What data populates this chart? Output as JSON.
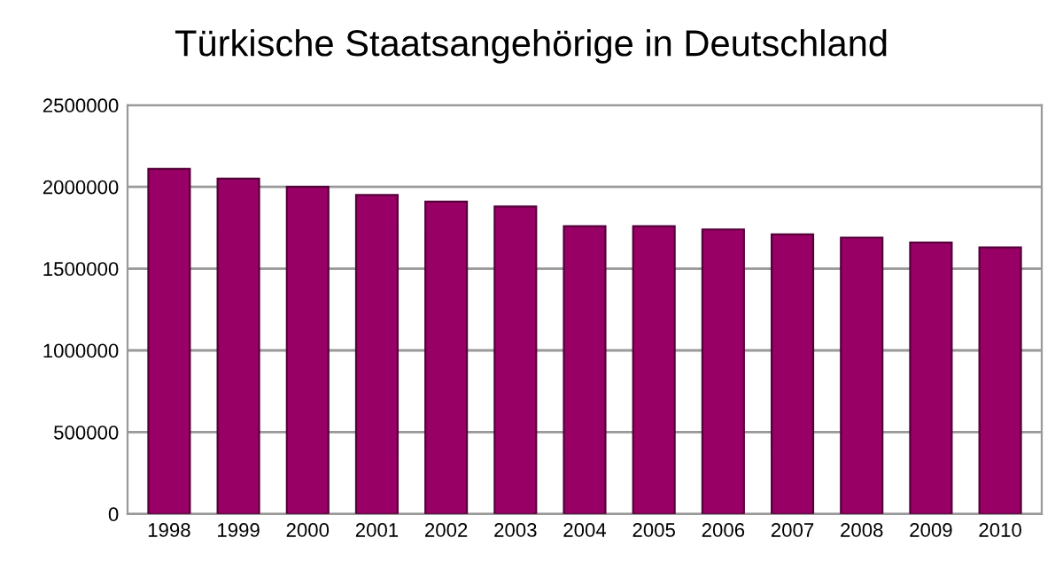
{
  "chart_data": {
    "type": "bar",
    "title": "Türkische Staatsangehörige in Deutschland",
    "categories": [
      "1998",
      "1999",
      "2000",
      "2001",
      "2002",
      "2003",
      "2004",
      "2005",
      "2006",
      "2007",
      "2008",
      "2009",
      "2010"
    ],
    "values": [
      2110000,
      2050000,
      2000000,
      1950000,
      1910000,
      1880000,
      1760000,
      1760000,
      1740000,
      1710000,
      1690000,
      1660000,
      1630000
    ],
    "color": "#990066",
    "ylim": [
      0,
      2500000
    ],
    "yticks": [
      0,
      500000,
      1000000,
      1500000,
      2000000,
      2500000
    ],
    "grid": "y"
  }
}
